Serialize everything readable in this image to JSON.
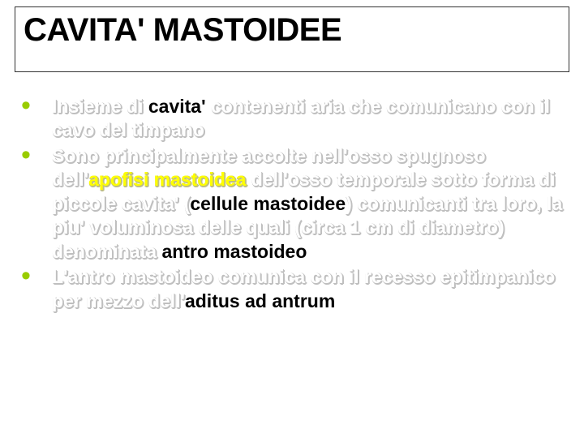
{
  "title": "CAVITA' MASTOIDEE",
  "colors": {
    "bullet": "#99cc00",
    "highlight_yellow": "#ffff00",
    "shadow_text": "#ffffff",
    "shadow_offset": "#bfbfbf",
    "plain_text": "#000000",
    "background": "#ffffff"
  },
  "typography": {
    "title_fontsize": 40,
    "body_fontsize": 23,
    "font_family": "Verdana",
    "body_weight": "bold"
  },
  "bullets": [
    {
      "runs": [
        {
          "text": "Insieme di ",
          "style": "shadow"
        },
        {
          "text": "cavita'",
          "style": "black"
        },
        {
          "text": " contenenti aria che comunicano con il cavo del timpano",
          "style": "shadow"
        }
      ]
    },
    {
      "runs": [
        {
          "text": "Sono principalmente accolte nell'osso spugnoso dell'",
          "style": "shadow"
        },
        {
          "text": "apofisi mastoidea",
          "style": "yellow"
        },
        {
          "text": " dell'osso temporale sotto forma di piccole cavita' (",
          "style": "shadow"
        },
        {
          "text": "cellule mastoidee",
          "style": "black"
        },
        {
          "text": ") comunicanti tra loro, la piu' voluminosa delle quali (circa 1 cm di diametro) denominata ",
          "style": "shadow"
        },
        {
          "text": "antro mastoideo",
          "style": "black"
        }
      ]
    },
    {
      "runs": [
        {
          "text": "L'antro mastoideo comunica con il recesso epitimpanico per mezzo dell'",
          "style": "shadow"
        },
        {
          "text": "aditus ad antrum",
          "style": "black"
        }
      ]
    }
  ]
}
